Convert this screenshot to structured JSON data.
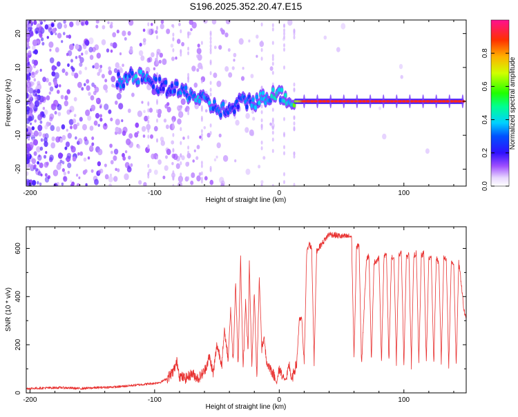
{
  "title": "S196.2025.352.20.47.E15",
  "chart_data": [
    {
      "type": "heatmap",
      "xlabel": "Height of straight line (km)",
      "ylabel": "Frequency (Hz)",
      "xlim": [
        -203,
        150
      ],
      "ylim": [
        -25,
        24
      ],
      "xticks": [
        -200,
        -100,
        0,
        100
      ],
      "yticks": [
        -20,
        -10,
        0,
        10,
        20
      ],
      "colorbar": {
        "label": "Normalized spectral amplitude",
        "range": [
          0,
          1
        ],
        "ticks": [
          "0.0",
          "0.2",
          "0.4",
          "0.6",
          "0.8"
        ],
        "tick_values": [
          0.0,
          0.2,
          0.4,
          0.6,
          0.8
        ]
      },
      "ridge_trace": [
        {
          "x": -130,
          "y": 6,
          "amp": 0.3
        },
        {
          "x": -120,
          "y": 7,
          "amp": 0.4
        },
        {
          "x": -110,
          "y": 7,
          "amp": 0.35
        },
        {
          "x": -100,
          "y": 5,
          "amp": 0.3
        },
        {
          "x": -90,
          "y": 4,
          "amp": 0.3
        },
        {
          "x": -80,
          "y": 3,
          "amp": 0.35
        },
        {
          "x": -70,
          "y": 2,
          "amp": 0.4
        },
        {
          "x": -60,
          "y": 0,
          "amp": 0.35
        },
        {
          "x": -50,
          "y": -2,
          "amp": 0.35
        },
        {
          "x": -40,
          "y": -3,
          "amp": 0.3
        },
        {
          "x": -30,
          "y": 0,
          "amp": 0.3
        },
        {
          "x": -20,
          "y": 0,
          "amp": 0.35
        },
        {
          "x": -10,
          "y": 1,
          "amp": 0.4
        },
        {
          "x": -5,
          "y": 3,
          "amp": 0.45
        },
        {
          "x": 0,
          "y": 2,
          "amp": 0.45
        },
        {
          "x": 5,
          "y": 1,
          "amp": 0.4
        },
        {
          "x": 10,
          "y": 0,
          "amp": 0.5
        },
        {
          "x": 20,
          "y": 0,
          "amp": 0.9
        },
        {
          "x": 50,
          "y": 0,
          "amp": 0.95
        },
        {
          "x": 100,
          "y": 0,
          "amp": 0.95
        },
        {
          "x": 148,
          "y": 0,
          "amp": 0.9
        }
      ]
    },
    {
      "type": "line",
      "xlabel": "Height of straight line (km)",
      "ylabel": "SNR (10 * v/v)",
      "xlim": [
        -203,
        150
      ],
      "ylim": [
        0,
        690
      ],
      "xticks": [
        -200,
        -100,
        0,
        100
      ],
      "yticks": [
        0,
        200,
        400,
        600
      ],
      "color": "#e8302f",
      "series": [
        {
          "name": "SNR",
          "x": [
            -203,
            -190,
            -175,
            -160,
            -145,
            -130,
            -120,
            -110,
            -100,
            -95,
            -90,
            -85,
            -82,
            -80,
            -75,
            -70,
            -65,
            -60,
            -56,
            -53,
            -50,
            -46,
            -44,
            -41,
            -39,
            -37,
            -35,
            -33,
            -31,
            -29,
            -27,
            -25,
            -24,
            -22,
            -20,
            -18,
            -16,
            -14,
            -12,
            -10,
            -8,
            -6,
            -4,
            -2,
            0,
            2,
            4,
            6,
            8,
            10,
            12,
            14,
            16,
            18,
            20,
            22,
            24,
            26,
            28,
            30,
            40,
            50,
            58,
            60,
            62,
            64,
            66,
            70,
            72,
            74,
            76,
            80,
            82,
            84,
            86,
            88,
            90,
            92,
            94,
            96,
            98,
            100,
            102,
            104,
            106,
            108,
            110,
            112,
            114,
            116,
            118,
            120,
            122,
            124,
            126,
            128,
            130,
            132,
            134,
            136,
            138,
            140,
            142,
            144,
            146,
            148,
            150
          ],
          "y": [
            18,
            20,
            22,
            18,
            22,
            25,
            30,
            35,
            40,
            45,
            60,
            90,
            130,
            70,
            60,
            80,
            60,
            90,
            150,
            80,
            200,
            120,
            260,
            140,
            350,
            130,
            460,
            120,
            560,
            90,
            380,
            170,
            540,
            100,
            420,
            60,
            480,
            180,
            230,
            120,
            110,
            90,
            70,
            40,
            100,
            80,
            55,
            60,
            120,
            50,
            90,
            120,
            300,
            310,
            120,
            580,
            620,
            600,
            130,
            590,
            660,
            650,
            650,
            140,
            600,
            620,
            120,
            560,
            570,
            130,
            540,
            560,
            130,
            560,
            580,
            130,
            560,
            560,
            130,
            570,
            580,
            120,
            560,
            580,
            120,
            570,
            580,
            120,
            570,
            580,
            120,
            560,
            560,
            120,
            560,
            540,
            130,
            560,
            560,
            110,
            540,
            540,
            100,
            540,
            460,
            350,
            300
          ]
        }
      ]
    }
  ]
}
